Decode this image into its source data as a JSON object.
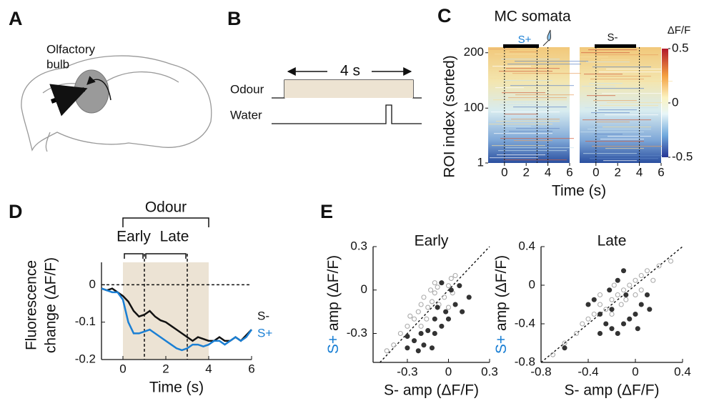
{
  "panel_labels": [
    "A",
    "B",
    "C",
    "D",
    "E"
  ],
  "panel_a": {
    "label_lines": [
      "Olfactory",
      "bulb"
    ]
  },
  "panel_b": {
    "duration": "4 s",
    "rows": [
      "Odour",
      "Water"
    ]
  },
  "panel_c": {
    "title": "MC somata",
    "heatmaps": [
      "S+",
      "S-"
    ],
    "ylabel": "ROI index (sorted)",
    "xlabel": "Time (s)",
    "xlim": [
      -1.5,
      6
    ],
    "xticks": [
      0,
      2,
      4,
      6
    ],
    "ylim": [
      1,
      210
    ],
    "yticks": [
      1,
      100,
      200
    ],
    "colorbar": {
      "label": "ΔF/F",
      "clim": [
        -0.5,
        0.5
      ],
      "ticks": [
        0.5,
        0,
        -0.5
      ]
    }
  },
  "chart_data": [
    {
      "type": "line",
      "ylabel": [
        "Fluorescence",
        "change (ΔF/F)"
      ],
      "xlabel": "Time (s)",
      "xlim": [
        -1,
        6
      ],
      "xticks": [
        0,
        2,
        4,
        6
      ],
      "ylim": [
        -0.2,
        0.06
      ],
      "yticks": [
        0,
        -0.1,
        -0.2
      ],
      "hline": 0,
      "bands": [
        {
          "label": "Odour",
          "x": [
            0,
            4
          ]
        },
        {
          "label": "Early",
          "x": [
            0,
            1
          ]
        },
        {
          "label": "Late",
          "x": [
            1,
            3
          ]
        }
      ],
      "x": [
        -1,
        -0.75,
        -0.5,
        -0.25,
        0,
        0.25,
        0.5,
        0.75,
        1,
        1.25,
        1.5,
        1.75,
        2,
        2.25,
        2.5,
        2.75,
        3,
        3.25,
        3.5,
        3.75,
        4,
        4.25,
        4.5,
        4.75,
        5,
        5.25,
        5.5,
        5.75,
        6
      ],
      "series": [
        {
          "name": "S-",
          "color": "#111111",
          "values": [
            -0.01,
            -0.015,
            -0.01,
            -0.02,
            -0.03,
            -0.045,
            -0.07,
            -0.085,
            -0.08,
            -0.07,
            -0.085,
            -0.095,
            -0.1,
            -0.11,
            -0.12,
            -0.13,
            -0.14,
            -0.15,
            -0.14,
            -0.145,
            -0.15,
            -0.15,
            -0.14,
            -0.15,
            -0.15,
            -0.14,
            -0.15,
            -0.135,
            -0.12
          ]
        },
        {
          "name": "S+",
          "color": "#1a7fd4",
          "values": [
            -0.01,
            -0.015,
            -0.02,
            -0.02,
            -0.04,
            -0.1,
            -0.13,
            -0.13,
            -0.125,
            -0.12,
            -0.13,
            -0.14,
            -0.15,
            -0.16,
            -0.17,
            -0.175,
            -0.17,
            -0.16,
            -0.16,
            -0.165,
            -0.16,
            -0.15,
            -0.15,
            -0.16,
            -0.15,
            -0.14,
            -0.15,
            -0.14,
            -0.12
          ]
        }
      ]
    },
    {
      "type": "scatter",
      "title": "Early",
      "ylabel": [
        "S+",
        "amp (ΔF/F)"
      ],
      "xlabel": "S- amp (ΔF/F)",
      "diagonal": true,
      "xlim": [
        -0.55,
        0.3
      ],
      "xticks": [
        -0.3,
        0,
        0.3
      ],
      "ylim": [
        -0.5,
        0.3
      ],
      "yticks": [
        0.3,
        0,
        -0.3
      ],
      "series": [
        {
          "color": "#aaaaaa",
          "filled": false,
          "x": [
            -0.4,
            -0.35,
            -0.3,
            -0.25,
            -0.22,
            -0.2,
            -0.18,
            -0.15,
            -0.12,
            -0.1,
            -0.08,
            -0.05,
            -0.03,
            0,
            0.02,
            0.05,
            -0.13,
            -0.16,
            -0.28,
            -0.07,
            0,
            0.03,
            -0.2,
            -0.1,
            -0.45
          ],
          "y": [
            -0.38,
            -0.3,
            -0.25,
            -0.2,
            -0.15,
            -0.1,
            -0.05,
            -0.12,
            -0.08,
            -0.02,
            0.02,
            0.05,
            -0.05,
            0.03,
            0.08,
            0.1,
            0,
            -0.2,
            -0.18,
            -0.1,
            -0.12,
            -0.02,
            -0.25,
            0.05,
            -0.42
          ]
        },
        {
          "color": "#333333",
          "filled": true,
          "x": [
            -0.3,
            -0.25,
            -0.2,
            -0.15,
            -0.1,
            -0.05,
            -0.12,
            -0.18,
            0,
            0.05,
            0.1,
            0.15,
            -0.05,
            0.02,
            -0.08,
            -0.22,
            -0.02,
            0.08,
            -0.3,
            -0.1
          ],
          "y": [
            -0.32,
            -0.35,
            -0.3,
            -0.28,
            -0.3,
            -0.25,
            -0.4,
            -0.38,
            -0.2,
            -0.1,
            -0.15,
            -0.05,
            0.05,
            0,
            -0.12,
            -0.42,
            -0.15,
            0.03,
            -0.4,
            -0.2
          ]
        }
      ]
    },
    {
      "type": "scatter",
      "title": "Late",
      "ylabel": [
        "S+",
        "amp (ΔF/F)"
      ],
      "xlabel": "S- amp (ΔF/F)",
      "diagonal": true,
      "xlim": [
        -0.8,
        0.4
      ],
      "xticks": [
        -0.8,
        -0.4,
        0,
        0.4
      ],
      "ylim": [
        -0.8,
        0.4
      ],
      "yticks": [
        0.4,
        0,
        -0.4,
        -0.8
      ],
      "series": [
        {
          "color": "#aaaaaa",
          "filled": false,
          "x": [
            -0.6,
            -0.5,
            -0.4,
            -0.35,
            -0.3,
            -0.25,
            -0.2,
            -0.15,
            -0.1,
            -0.05,
            0,
            0.05,
            0.1,
            0.2,
            0.3,
            -0.2,
            -0.12,
            -0.08,
            0,
            -0.3,
            -0.45,
            0.05,
            -0.18,
            0.15,
            -0.7
          ],
          "y": [
            -0.6,
            -0.5,
            -0.35,
            -0.3,
            -0.2,
            -0.25,
            -0.15,
            -0.1,
            -0.05,
            0,
            0.05,
            0.1,
            0.15,
            0.2,
            0.25,
            -0.3,
            -0.2,
            -0.15,
            -0.1,
            -0.1,
            -0.4,
            -0.05,
            0,
            0.05,
            -0.72
          ]
        },
        {
          "color": "#333333",
          "filled": true,
          "x": [
            -0.4,
            -0.35,
            -0.3,
            -0.25,
            -0.2,
            -0.15,
            -0.1,
            -0.05,
            0,
            0.05,
            0.1,
            -0.15,
            -0.1,
            -0.2,
            -0.3,
            -0.6,
            0.02,
            -0.08,
            0.12,
            -0.22
          ],
          "y": [
            -0.2,
            -0.15,
            -0.3,
            -0.4,
            -0.45,
            -0.5,
            -0.4,
            -0.35,
            -0.3,
            -0.2,
            -0.1,
            0.05,
            0.15,
            -0.25,
            -0.5,
            -0.65,
            -0.45,
            -0.1,
            -0.25,
            -0.05
          ]
        }
      ]
    }
  ]
}
